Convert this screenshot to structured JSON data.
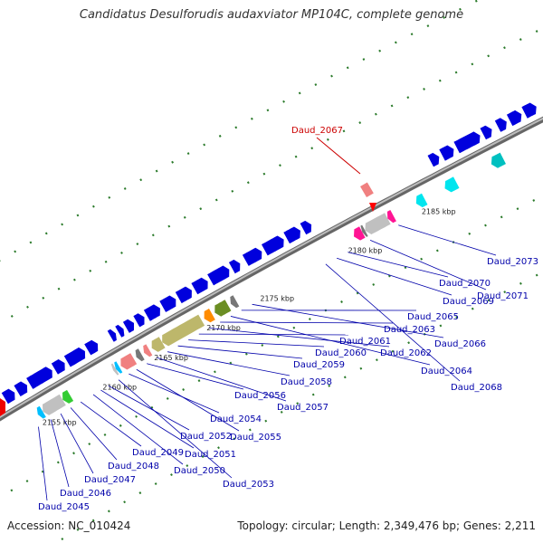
{
  "title": "Candidatus Desulforudis audaxviator MP104C, complete genome",
  "accession": "Accession: NC_010424",
  "summary": "Topology: circular; Length: 2,349,476 bp; Genes: 2,211",
  "highlight_gene": "Daud_2067",
  "colors": {
    "backbone": "#8c8c8c",
    "gene_blue": "#0000dd",
    "guide_green": "#2a7a2a",
    "leader_blue": "#0000aa",
    "highlight_red": "#cc0000"
  },
  "tick_labels": [
    "2155 kbp",
    "2160 kbp",
    "2165 kbp",
    "2170 kbp",
    "2175 kbp",
    "2180 kbp",
    "2185 kbp"
  ],
  "gene_labels": [
    "Daud_2045",
    "Daud_2046",
    "Daud_2047",
    "Daud_2048",
    "Daud_2049",
    "Daud_2050",
    "Daud_2051",
    "Daud_2052",
    "Daud_2053",
    "Daud_2054",
    "Daud_2055",
    "Daud_2056",
    "Daud_2057",
    "Daud_2058",
    "Daud_2059",
    "Daud_2060",
    "Daud_2061",
    "Daud_2062",
    "Daud_2063",
    "Daud_2064",
    "Daud_2065",
    "Daud_2066",
    "Daud_2068",
    "Daud_2069",
    "Daud_2070",
    "Daud_2071",
    "Daud_2073"
  ]
}
